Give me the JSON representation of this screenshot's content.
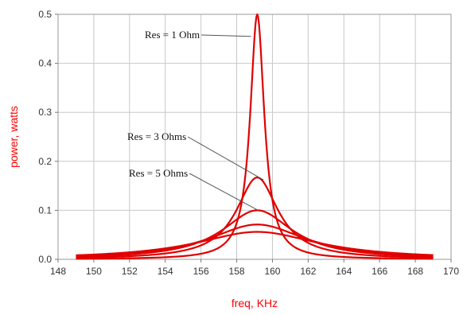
{
  "chart_data": {
    "type": "line",
    "xlabel": "freq, KHz",
    "ylabel": "power, watts",
    "xlim": [
      148,
      170
    ],
    "ylim": [
      0,
      0.5
    ],
    "xticks": [
      148,
      150,
      152,
      154,
      156,
      158,
      160,
      162,
      164,
      166,
      168,
      170
    ],
    "yticks": [
      0.0,
      0.1,
      0.2,
      0.3,
      0.4,
      0.5
    ],
    "ytick_labels": [
      "0.0",
      "0.1",
      "0.2",
      "0.3",
      "0.4",
      "0.5"
    ],
    "grid": true,
    "line_color": "#e00000",
    "x_range_data": [
      149,
      169
    ],
    "series": [
      {
        "peak_freq": 159.15,
        "peak_power": 0.5,
        "half_width": 0.48
      },
      {
        "peak_freq": 159.15,
        "peak_power": 0.167,
        "half_width": 1.43
      },
      {
        "peak_freq": 159.15,
        "peak_power": 0.1,
        "half_width": 2.39
      },
      {
        "peak_freq": 159.15,
        "peak_power": 0.071,
        "half_width": 3.3
      },
      {
        "peak_freq": 159.15,
        "peak_power": 0.056,
        "half_width": 4.2
      }
    ],
    "annotations": [
      {
        "text": "Res = 1 Ohm",
        "target_x": 158.8,
        "target_y": 0.455
      },
      {
        "text": "Res = 3 Ohms",
        "target_x": 159.5,
        "target_y": 0.162
      },
      {
        "text": "Res = 5 Ohms",
        "target_x": 159.2,
        "target_y": 0.1
      }
    ]
  }
}
